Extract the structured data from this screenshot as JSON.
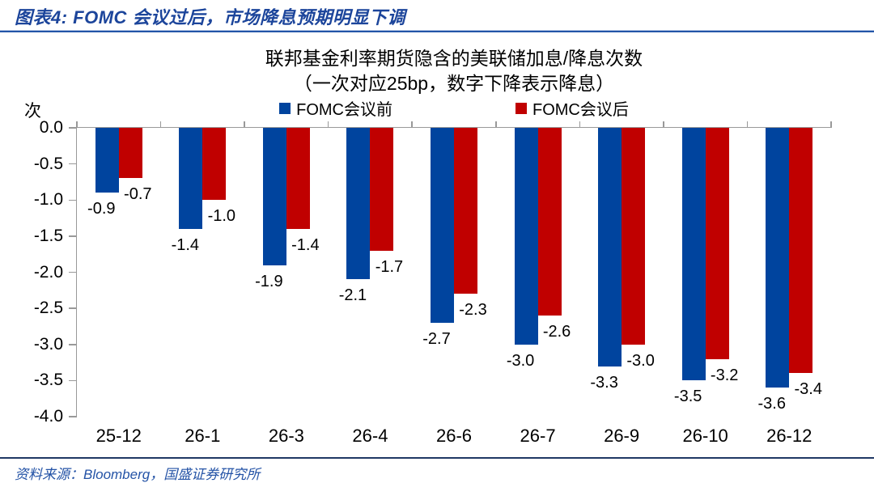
{
  "header": {
    "title": "图表4: FOMC 会议过后，市场降息预期明显下调"
  },
  "footer": {
    "source": "资料来源：Bloomberg，国盛证券研究所"
  },
  "colors": {
    "series_before": "#00449E",
    "series_after": "#C00000",
    "header_text": "#1C459B",
    "header_rule": "#2355A8",
    "footer_rule": "#203864",
    "source_text": "#2453A6",
    "axis": "#999999",
    "label_text": "#000000"
  },
  "chart_data": {
    "type": "bar",
    "title": "联邦基金利率期货隐含的美联储加息/降息次数",
    "subtitle": "（一次对应25bp，数字下降表示降息）",
    "unit_label": "次",
    "categories": [
      "25-12",
      "26-1",
      "26-3",
      "26-4",
      "26-6",
      "26-7",
      "26-9",
      "26-10",
      "26-12"
    ],
    "series": [
      {
        "name": "FOMC会议前",
        "color": "#00449E",
        "values": [
          -0.9,
          -1.4,
          -1.9,
          -2.1,
          -2.7,
          -3.0,
          -3.3,
          -3.5,
          -3.6
        ]
      },
      {
        "name": "FOMC会议后",
        "color": "#C00000",
        "values": [
          -0.7,
          -1.0,
          -1.4,
          -1.7,
          -2.3,
          -2.6,
          -3.0,
          -3.2,
          -3.4
        ]
      }
    ],
    "ylim": [
      -4.0,
      0.0
    ],
    "ytick_step": -0.5,
    "ytick_labels": [
      "0.0",
      "-0.5",
      "-1.0",
      "-1.5",
      "-2.0",
      "-2.5",
      "-3.0",
      "-3.5",
      "-4.0"
    ],
    "legend_position": "top",
    "grid": false,
    "value_labels": "outside end, one decimal"
  }
}
